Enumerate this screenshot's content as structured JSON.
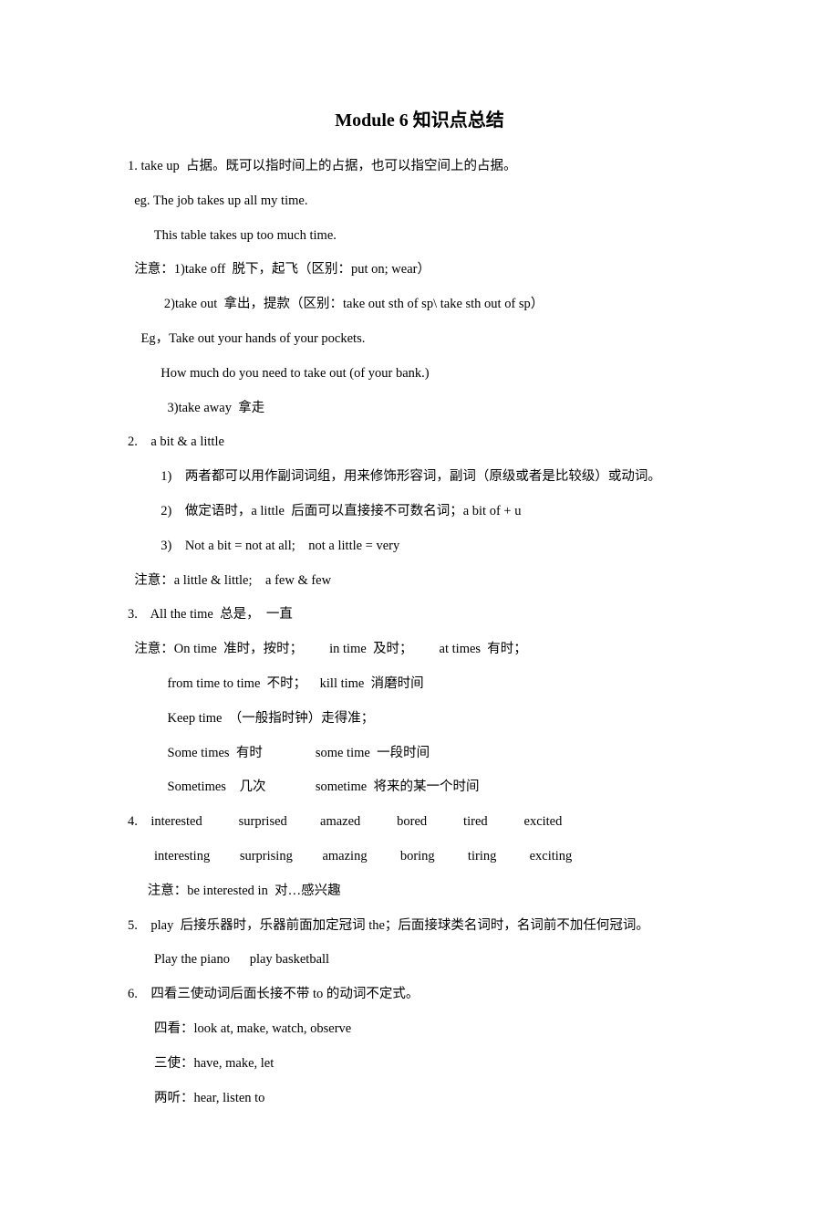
{
  "title": "Module 6 知识点总结",
  "lines": [
    "1. take up  占据。既可以指时间上的占据，也可以指空间上的占据。",
    "  eg. The job takes up all my time.",
    "        This table takes up too much time.",
    "  注意：1)take off  脱下，起飞（区别：put on; wear）",
    "           2)take out  拿出，提款（区别：take out sth of sp\\ take sth out of sp）",
    "    Eg，Take out your hands of your pockets.",
    "          How much do you need to take out (of your bank.)",
    "            3)take away  拿走",
    "2.    a bit & a little",
    "          1)    两者都可以用作副词词组，用来修饰形容词，副词（原级或者是比较级）或动词。",
    "          2)    做定语时，a little  后面可以直接接不可数名词；a bit of + u",
    "          3)    Not a bit = not at all;    not a little = very",
    "  注意：a little & little;    a few & few",
    "3.    All the time  总是，  一直",
    "  注意：On time  准时，按时；        in time  及时；        at times  有时；",
    "            from time to time  不时；    kill time  消磨时间",
    "            Keep time  （一般指时钟）走得准；",
    "            Some times  有时                some time  一段时间",
    "            Sometimes    几次               sometime  将来的某一个时间",
    "4.    interested           surprised          amazed           bored           tired           excited",
    "        interesting         surprising         amazing          boring          tiring          exciting",
    "      注意：be interested in  对…感兴趣",
    "5.    play  后接乐器时，乐器前面加定冠词 the；后面接球类名词时，名词前不加任何冠词。",
    "        Play the piano      play basketball",
    "6.    四看三使动词后面长接不带 to 的动词不定式。",
    "        四看：look at, make, watch, observe",
    "        三使：have, make, let",
    "        两听：hear, listen to"
  ]
}
